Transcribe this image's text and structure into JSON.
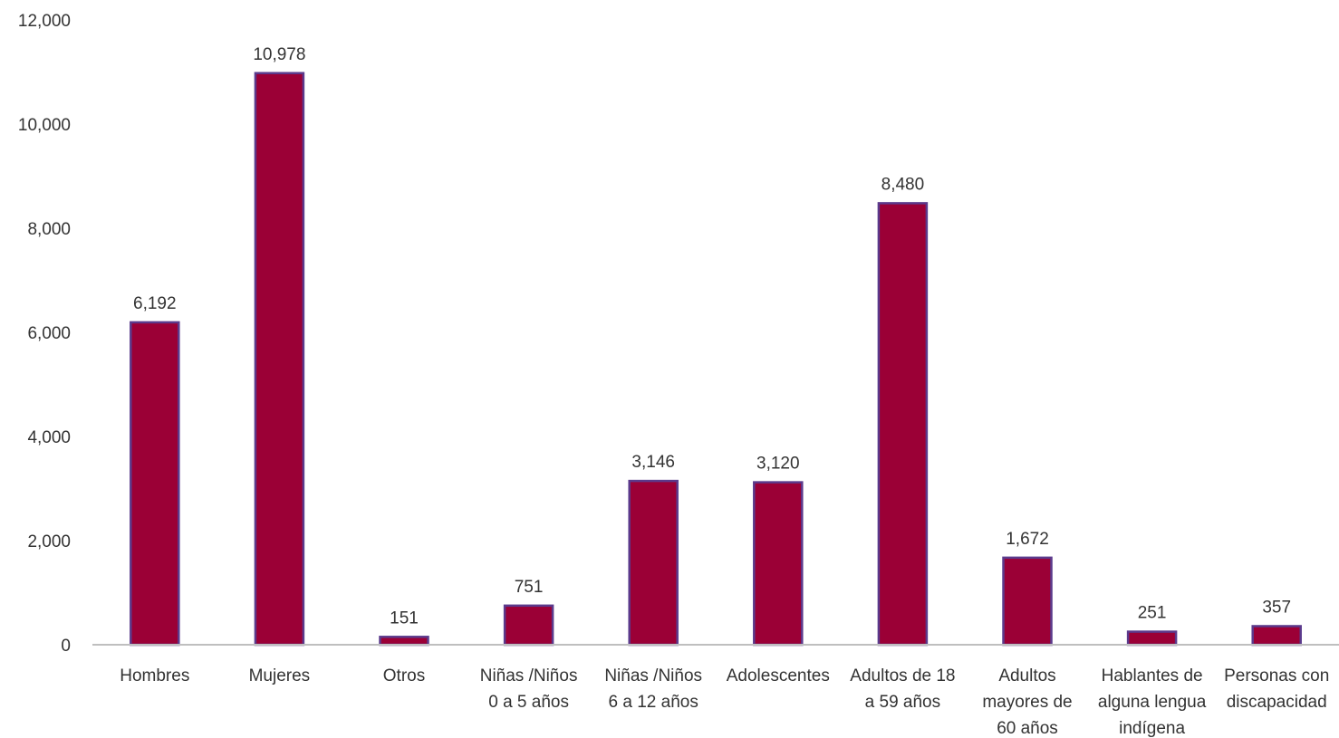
{
  "chart_data": {
    "type": "bar",
    "categories": [
      [
        "Hombres"
      ],
      [
        "Mujeres"
      ],
      [
        "Otros"
      ],
      [
        "Niñas /Niños",
        "0 a 5 años"
      ],
      [
        "Niñas /Niños",
        "6 a 12 años"
      ],
      [
        "Adolescentes"
      ],
      [
        "Adultos de 18",
        "a 59 años"
      ],
      [
        "Adultos",
        "mayores de",
        "60 años"
      ],
      [
        "Hablantes de",
        "alguna lengua",
        "indígena"
      ],
      [
        "Personas con",
        "discapacidad"
      ]
    ],
    "values": [
      6192,
      10978,
      151,
      751,
      3146,
      3120,
      8480,
      1672,
      251,
      357
    ],
    "data_labels": [
      "6,192",
      "10,978",
      "151",
      "751",
      "3,146",
      "3,120",
      "8,480",
      "1,672",
      "251",
      "357"
    ],
    "y_ticks": [
      0,
      2000,
      4000,
      6000,
      8000,
      10000,
      12000
    ],
    "y_tick_labels": [
      "0",
      "2,000",
      "4,000",
      "6,000",
      "8,000",
      "10,000",
      "12,000"
    ],
    "ylim": [
      0,
      12000
    ],
    "grid": false,
    "colors": {
      "bar_fill": "#9b0036",
      "bar_edge": "#5b3a8c",
      "axis": "#bfbfbf"
    }
  }
}
